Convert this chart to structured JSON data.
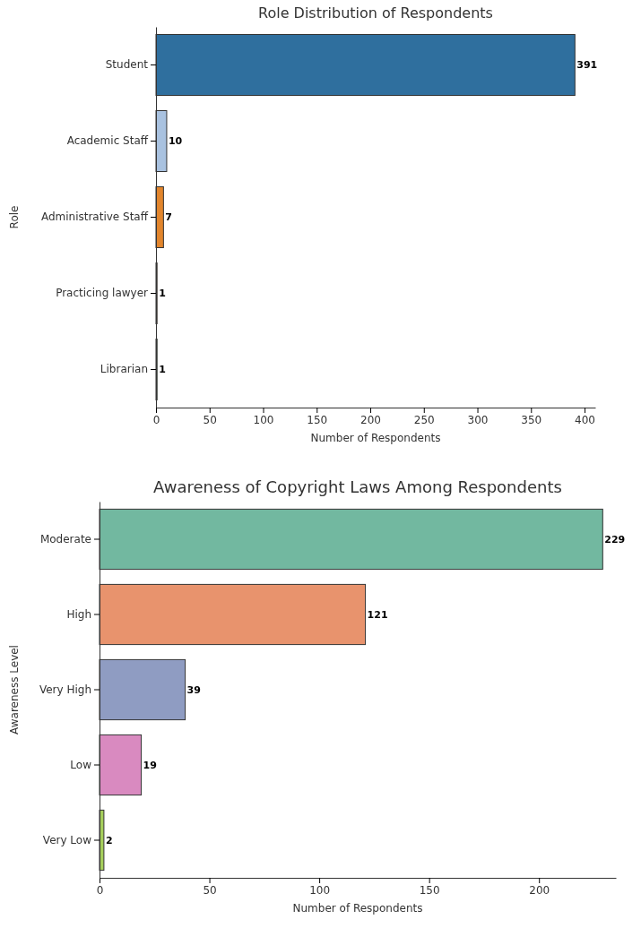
{
  "chart_data": [
    {
      "type": "bar",
      "orientation": "horizontal",
      "title": "Role Distribution of Respondents",
      "xlabel": "Number of Respondents",
      "ylabel": "Role",
      "categories": [
        "Student",
        "Academic Staff",
        "Administrative Staff",
        "Practicing lawyer",
        "Librarian"
      ],
      "values": [
        391,
        10,
        7,
        1,
        1
      ],
      "colors": [
        "#2f6f9e",
        "#a9c2e0",
        "#e2852c",
        "#f5b878",
        "#3d9a3d"
      ],
      "xlim": [
        0,
        410
      ],
      "xticks": [
        0,
        50,
        100,
        150,
        200,
        250,
        300,
        350,
        400
      ],
      "data_labels": true,
      "grid": false
    },
    {
      "type": "bar",
      "orientation": "horizontal",
      "title": "Awareness of Copyright Laws Among Respondents",
      "xlabel": "Number of Respondents",
      "ylabel": "Awareness Level",
      "categories": [
        "Moderate",
        "High",
        "Very High",
        "Low",
        "Very Low"
      ],
      "values": [
        229,
        121,
        39,
        19,
        2
      ],
      "colors": [
        "#72b8a0",
        "#e8936d",
        "#8f9cc2",
        "#d98ac0",
        "#a6cf5c"
      ],
      "xlim": [
        0,
        235
      ],
      "xticks": [
        0,
        50,
        100,
        150,
        200
      ],
      "data_labels": true,
      "grid": false
    }
  ]
}
